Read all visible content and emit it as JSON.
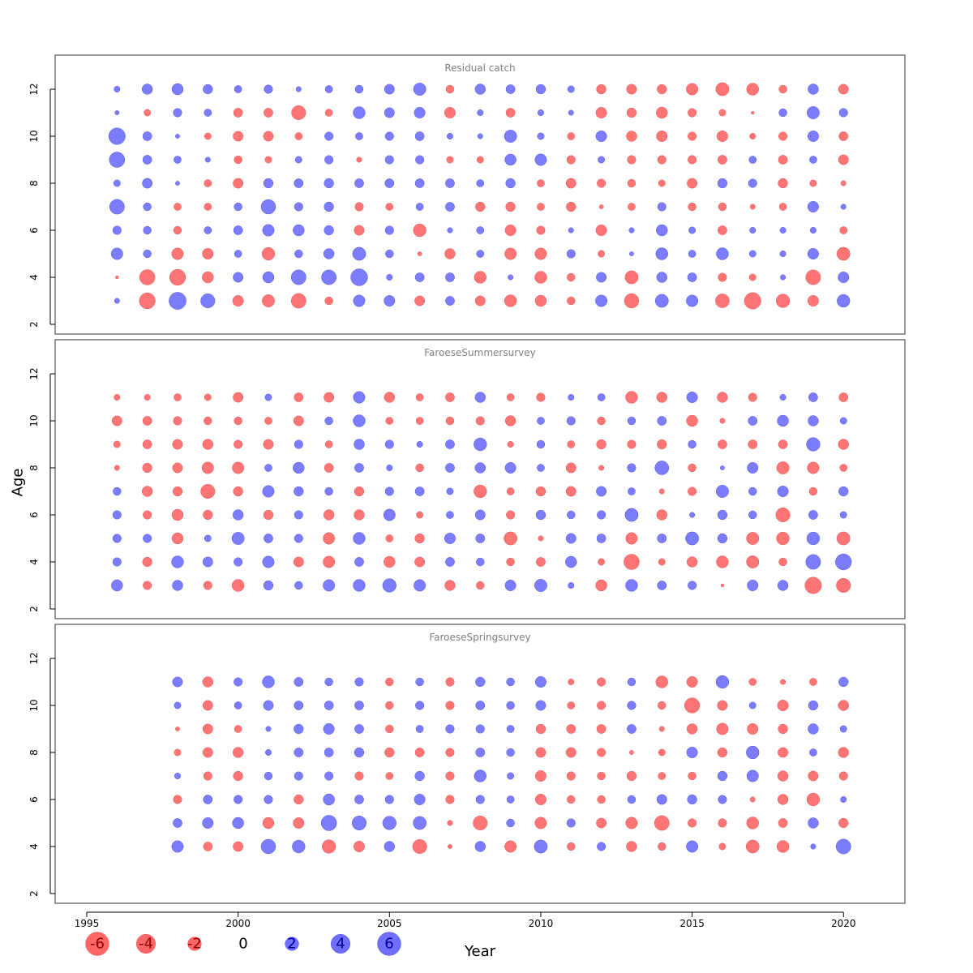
{
  "colors": {
    "negative": "#FF6666",
    "positive": "#6E6EFF",
    "neg_text": "#8B0000",
    "pos_text": "#00008B"
  },
  "chart_data": {
    "type": "bubble",
    "xlabel": "Year",
    "ylabel": "Age",
    "xlim": [
      1994,
      2022
    ],
    "ylim": [
      1.5,
      13.3
    ],
    "x_ticks": [
      1995,
      2000,
      2005,
      2010,
      2015,
      2020
    ],
    "y_ticks": [
      2,
      4,
      6,
      8,
      10,
      12
    ],
    "legend": {
      "values": [
        -6,
        -4,
        -2,
        0,
        2,
        4,
        6
      ],
      "labels": [
        "-6",
        "-4",
        "-2",
        "0",
        "2",
        "4",
        "6"
      ]
    },
    "panels": [
      {
        "title": "Residual catch",
        "years": [
          1996,
          1997,
          1998,
          1999,
          2000,
          2001,
          2002,
          2003,
          2004,
          2005,
          2006,
          2007,
          2008,
          2009,
          2010,
          2011,
          2012,
          2013,
          2014,
          2015,
          2016,
          2017,
          2018,
          2019,
          2020
        ],
        "ages": [
          3,
          4,
          5,
          6,
          7,
          8,
          9,
          10,
          11,
          12
        ],
        "residuals": [
          [
            0.3,
            -0.1,
            1.5,
            0.8,
            2.4,
            0.5,
            2.6,
            3.0,
            0.2,
            0.4
          ],
          [
            -2.8,
            -2.6,
            0.7,
            0.7,
            0.7,
            1.1,
            0.9,
            0.9,
            -0.5,
            1.2
          ],
          [
            3.2,
            -2.8,
            -1.5,
            -0.7,
            -0.6,
            0.2,
            0.6,
            0.2,
            0.8,
            1.4
          ],
          [
            2.2,
            -1.4,
            -1.3,
            0.6,
            -0.6,
            -0.6,
            0.3,
            -0.5,
            0.6,
            1.0
          ],
          [
            -1.3,
            1.1,
            0.6,
            0.9,
            0.7,
            -1.1,
            -0.7,
            -1.1,
            -0.9,
            0.6
          ],
          [
            -1.7,
            1.4,
            -1.8,
            1.5,
            2.3,
            1.0,
            -0.5,
            -1.1,
            -0.9,
            0.8
          ],
          [
            -2.4,
            2.4,
            0.7,
            1.4,
            0.8,
            0.9,
            0.5,
            -0.6,
            -2.2,
            0.3
          ],
          [
            -0.7,
            2.4,
            1.2,
            1.0,
            1.0,
            1.0,
            0.8,
            0.8,
            -0.6,
            0.6
          ],
          [
            1.5,
            3.1,
            1.9,
            -1.1,
            -0.8,
            0.9,
            -0.3,
            0.6,
            1.6,
            0.7
          ],
          [
            1.3,
            0.4,
            0.7,
            0.8,
            -0.6,
            0.9,
            0.8,
            0.8,
            1.1,
            1.1
          ],
          [
            -1.1,
            0.9,
            -0.2,
            -1.8,
            0.6,
            0.9,
            0.8,
            0.9,
            1.3,
            1.7
          ],
          [
            0.9,
            0.9,
            -1.2,
            0.3,
            0.9,
            0.9,
            -0.5,
            0.4,
            -1.3,
            -0.7
          ],
          [
            -1.1,
            -1.6,
            0.6,
            0.6,
            -1.0,
            0.6,
            -0.5,
            0.3,
            0.4,
            1.2
          ],
          [
            -1.6,
            0.3,
            -1.5,
            -1.3,
            -1.0,
            1.0,
            1.4,
            1.7,
            -0.9,
            0.9
          ],
          [
            -1.4,
            -1.6,
            -1.5,
            -0.8,
            -0.6,
            -0.6,
            1.5,
            0.5,
            0.4,
            1.0
          ],
          [
            -0.7,
            -0.7,
            0.8,
            0.3,
            -1.0,
            -1.1,
            -0.8,
            -0.6,
            0.3,
            0.5
          ],
          [
            1.5,
            1.1,
            -0.5,
            -1.3,
            -0.2,
            -0.8,
            0.5,
            1.3,
            -1.3,
            -1.0
          ],
          [
            -2.3,
            -1.9,
            0.2,
            0.3,
            -0.6,
            -0.7,
            -0.8,
            -1.2,
            -1.0,
            -1.1
          ],
          [
            1.9,
            1.2,
            1.6,
            1.4,
            0.8,
            -0.5,
            -0.8,
            -1.3,
            -1.4,
            -1.0
          ],
          [
            1.5,
            0.9,
            0.6,
            0.5,
            -0.7,
            -1.1,
            -0.8,
            -0.8,
            -0.8,
            -1.5
          ],
          [
            -2.1,
            -0.8,
            1.6,
            -0.9,
            -0.7,
            1.0,
            -0.9,
            -1.3,
            -0.5,
            -1.9
          ],
          [
            -3.0,
            -0.5,
            0.5,
            0.4,
            -0.3,
            0.8,
            0.6,
            -0.4,
            -0.1,
            -1.6
          ],
          [
            -2.0,
            0.3,
            0.4,
            0.4,
            -0.6,
            -1.0,
            -0.9,
            -0.8,
            0.7,
            -0.7
          ],
          [
            -1.3,
            -2.4,
            1.3,
            0.4,
            1.3,
            -0.5,
            0.6,
            1.3,
            1.7,
            1.2
          ],
          [
            1.8,
            1.3,
            -1.9,
            -0.6,
            0.3,
            -0.3,
            -1.1,
            -0.9,
            0.8,
            -1.1
          ]
        ]
      },
      {
        "title": "FaroeseSummersurvey",
        "years": [
          1996,
          1997,
          1998,
          1999,
          2000,
          2001,
          2002,
          2003,
          2004,
          2005,
          2006,
          2007,
          2008,
          2009,
          2010,
          2011,
          2012,
          2013,
          2014,
          2015,
          2016,
          2017,
          2018,
          2019,
          2020
        ],
        "ages": [
          3,
          4,
          5,
          6,
          7,
          8,
          9,
          10,
          11
        ],
        "residuals": [
          [
            1.4,
            0.8,
            0.8,
            0.8,
            0.7,
            -0.3,
            -0.5,
            -1.1,
            -0.4
          ],
          [
            -0.8,
            -1.0,
            0.8,
            -0.8,
            -1.2,
            -1.0,
            -0.9,
            -0.9,
            -0.4
          ],
          [
            1.2,
            1.6,
            -1.4,
            -1.4,
            -1.0,
            -1.1,
            -1.1,
            -0.8,
            -0.6
          ],
          [
            -0.8,
            1.1,
            0.5,
            -1.0,
            -2.2,
            -1.5,
            -1.2,
            -0.7,
            -0.5
          ],
          [
            -1.6,
            0.8,
            1.7,
            1.2,
            -1.0,
            -1.5,
            -0.8,
            -0.7,
            -1.1
          ],
          [
            1.0,
            1.5,
            0.9,
            -1.0,
            1.5,
            0.6,
            -1.1,
            -0.6,
            0.5
          ],
          [
            0.7,
            -1.1,
            0.8,
            0.8,
            1.0,
            1.4,
            0.8,
            -1.1,
            -0.9
          ],
          [
            1.5,
            -1.5,
            -1.5,
            -1.2,
            0.7,
            -0.9,
            -0.6,
            0.7,
            -1.1
          ],
          [
            1.6,
            0.9,
            1.6,
            -1.2,
            -1.0,
            0.9,
            1.2,
            1.6,
            1.5
          ],
          [
            2.0,
            -1.4,
            -0.6,
            1.5,
            0.8,
            0.4,
            0.8,
            -0.6,
            -1.2
          ],
          [
            1.5,
            -1.1,
            -1.0,
            -0.5,
            0.9,
            -0.7,
            0.4,
            -0.6,
            -0.6
          ],
          [
            -1.2,
            0.9,
            1.3,
            0.6,
            0.5,
            0.9,
            0.9,
            -0.7,
            -0.9
          ],
          [
            -0.7,
            0.7,
            0.9,
            1.1,
            -1.8,
            1.2,
            1.8,
            -0.8,
            1.2
          ],
          [
            1.3,
            -0.7,
            -1.9,
            -0.8,
            -0.6,
            1.3,
            -0.4,
            -1.2,
            -0.6
          ],
          [
            1.7,
            -0.9,
            -0.3,
            1.0,
            -1.0,
            0.6,
            0.7,
            0.6,
            -0.8
          ],
          [
            0.4,
            1.4,
            1.1,
            0.7,
            -1.1,
            -1.1,
            -0.6,
            0.8,
            0.4
          ],
          [
            -1.4,
            -0.5,
            0.9,
            0.8,
            1.1,
            -0.3,
            -1.0,
            -0.7,
            0.6
          ],
          [
            1.6,
            -2.6,
            -1.5,
            1.9,
            0.6,
            0.8,
            -0.8,
            0.7,
            -1.6
          ],
          [
            0.9,
            -0.5,
            0.9,
            -1.2,
            -0.3,
            2.1,
            -1.0,
            0.9,
            -1.2
          ],
          [
            0.8,
            -1.2,
            1.9,
            0.3,
            -0.8,
            -0.7,
            0.7,
            -1.4,
            1.3
          ],
          [
            -0.1,
            -1.6,
            1.0,
            1.0,
            1.7,
            0.2,
            -0.9,
            -0.3,
            -1.2
          ],
          [
            1.3,
            -1.7,
            -1.7,
            0.7,
            0.7,
            1.3,
            -0.9,
            0.9,
            -0.8
          ],
          [
            1.2,
            -0.7,
            -1.8,
            -2.2,
            1.3,
            -1.7,
            -0.9,
            1.4,
            0.4
          ],
          [
            -3.0,
            2.4,
            1.8,
            0.9,
            -0.7,
            -1.5,
            2.0,
            1.2,
            0.9
          ],
          [
            -2.2,
            2.8,
            -1.9,
            0.5,
            1.0,
            -0.6,
            -1.2,
            0.5,
            -0.9
          ]
        ]
      },
      {
        "title": "FaroeseSpringsurvey",
        "years": [
          1998,
          1999,
          2000,
          2001,
          2002,
          2003,
          2004,
          2005,
          2006,
          2007,
          2008,
          2009,
          2010,
          2011,
          2012,
          2013,
          2014,
          2015,
          2016,
          2017,
          2018,
          2019,
          2020
        ],
        "ages": [
          4,
          5,
          6,
          7,
          8,
          9,
          10,
          11
        ],
        "residuals": [
          [
            1.5,
            0.9,
            -0.8,
            0.4,
            -0.5,
            -0.2,
            0.5,
            1.1
          ],
          [
            -0.9,
            1.3,
            0.9,
            -0.8,
            -1.1,
            -1.1,
            -1.1,
            -1.2
          ],
          [
            -1.1,
            1.4,
            0.8,
            -1.0,
            -1.2,
            -0.6,
            0.6,
            0.8
          ],
          [
            2.3,
            -1.4,
            0.8,
            0.7,
            0.4,
            0.3,
            1.1,
            1.6
          ],
          [
            1.8,
            -1.3,
            -1.0,
            0.8,
            0.9,
            1.0,
            0.9,
            0.9
          ],
          [
            -2.0,
            2.6,
            1.4,
            0.8,
            0.9,
            1.3,
            0.9,
            0.7
          ],
          [
            -1.3,
            2.2,
            0.9,
            -0.8,
            1.0,
            0.9,
            0.9,
            0.8
          ],
          [
            1.2,
            2.0,
            0.8,
            -0.6,
            -1.0,
            -0.7,
            -0.7,
            -0.7
          ],
          [
            -2.2,
            1.9,
            1.3,
            1.0,
            -0.9,
            0.6,
            0.8,
            0.7
          ],
          [
            -0.2,
            -0.3,
            -0.8,
            -0.8,
            -0.8,
            0.8,
            -0.8,
            -0.8
          ],
          [
            1.2,
            -2.2,
            0.8,
            1.6,
            0.9,
            0.8,
            0.9,
            1.0
          ],
          [
            -1.5,
            0.7,
            0.6,
            0.5,
            0.7,
            0.6,
            0.7,
            0.7
          ],
          [
            1.9,
            -1.5,
            -1.3,
            -1.3,
            -1.1,
            -1.0,
            1.1,
            1.3
          ],
          [
            -0.7,
            0.8,
            -0.7,
            -0.8,
            -1.1,
            -0.9,
            -0.6,
            -0.4
          ],
          [
            0.8,
            -1.1,
            -0.7,
            -0.7,
            -0.8,
            -0.9,
            -0.8,
            -0.8
          ],
          [
            -1.2,
            -1.5,
            0.7,
            -1.0,
            -0.2,
            0.9,
            0.8,
            0.7
          ],
          [
            -0.7,
            -2.4,
            1.1,
            -0.6,
            -0.5,
            -0.3,
            -0.7,
            -1.6
          ],
          [
            1.5,
            -0.8,
            1.0,
            -0.7,
            1.3,
            -1.2,
            -2.5,
            -1.3
          ],
          [
            -0.5,
            -0.8,
            0.8,
            1.0,
            -1.0,
            -1.5,
            -1.1,
            1.8
          ],
          [
            -1.9,
            -1.6,
            -0.3,
            1.5,
            1.8,
            -1.3,
            0.5,
            -0.6
          ],
          [
            -1.6,
            -0.9,
            -1.2,
            -1.2,
            -1.1,
            -1.0,
            -1.3,
            -0.3
          ],
          [
            0.3,
            1.2,
            -1.8,
            -1.1,
            0.6,
            1.2,
            1.0,
            -0.6
          ],
          [
            2.4,
            -1.0,
            0.4,
            -0.8,
            -1.2,
            0.5,
            -1.2,
            1.0
          ]
        ]
      }
    ]
  }
}
